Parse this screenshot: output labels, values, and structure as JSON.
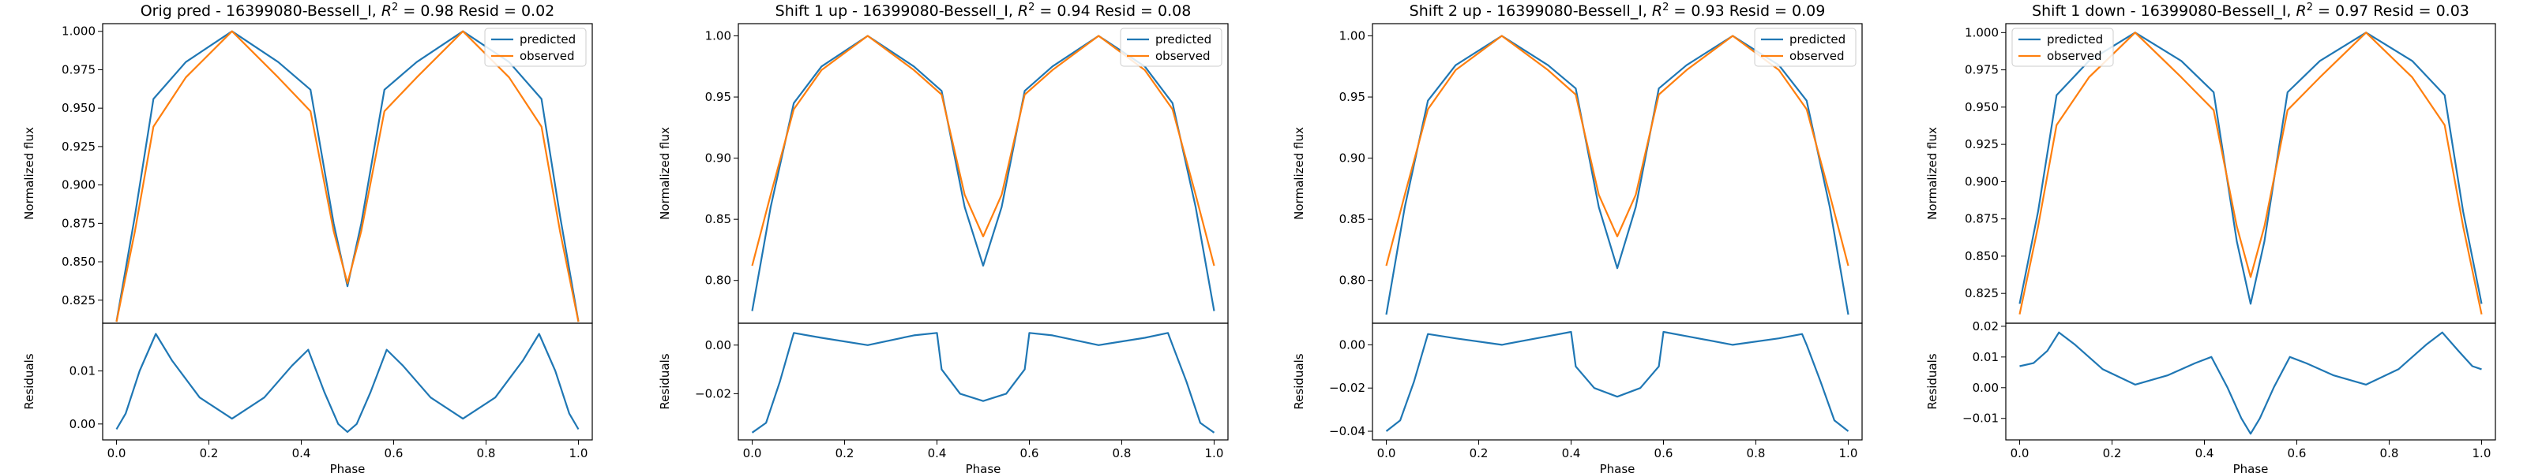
{
  "chart_data": [
    {
      "type": "line",
      "title_prefix": "Orig pred - 16399080-Bessell_I, ",
      "r2_symbol": "R",
      "r2_sup": "2",
      "title_suffix": " = 0.98 Resid = 0.02",
      "top": {
        "ylabel": "Normalized flux",
        "ylim": [
          0.81,
          1.005
        ],
        "yticks": [
          0.825,
          0.85,
          0.875,
          0.9,
          0.925,
          0.95,
          0.975,
          1.0
        ],
        "ytick_labels": [
          "0.825",
          "0.850",
          "0.875",
          "0.900",
          "0.925",
          "0.950",
          "0.975",
          "1.000"
        ],
        "legend": "top-right",
        "series": [
          {
            "name": "predicted",
            "color": "#1f77b4",
            "x": [
              0.0,
              0.04,
              0.08,
              0.15,
              0.25,
              0.35,
              0.42,
              0.47,
              0.5,
              0.53,
              0.58,
              0.65,
              0.75,
              0.85,
              0.92,
              0.96,
              1.0
            ],
            "y": [
              0.811,
              0.88,
              0.956,
              0.98,
              1.0,
              0.98,
              0.962,
              0.875,
              0.834,
              0.875,
              0.962,
              0.98,
              1.0,
              0.98,
              0.956,
              0.88,
              0.811
            ]
          },
          {
            "name": "observed",
            "color": "#ff7f0e",
            "x": [
              0.0,
              0.04,
              0.08,
              0.15,
              0.25,
              0.35,
              0.42,
              0.47,
              0.5,
              0.53,
              0.58,
              0.65,
              0.75,
              0.85,
              0.92,
              0.96,
              1.0
            ],
            "y": [
              0.811,
              0.87,
              0.938,
              0.97,
              1.0,
              0.97,
              0.948,
              0.87,
              0.836,
              0.87,
              0.948,
              0.97,
              1.0,
              0.97,
              0.938,
              0.87,
              0.811
            ]
          }
        ]
      },
      "bottom": {
        "ylabel": "Residuals",
        "xlabel": "Phase",
        "ylim": [
          -0.003,
          0.019
        ],
        "yticks": [
          0.0,
          0.01
        ],
        "ytick_labels": [
          "0.00",
          "0.01"
        ],
        "xticks": [
          0.0,
          0.2,
          0.4,
          0.6,
          0.8,
          1.0
        ],
        "xtick_labels": [
          "0.0",
          "0.2",
          "0.4",
          "0.6",
          "0.8",
          "1.0"
        ],
        "series": [
          {
            "name": "residual",
            "color": "#1f77b4",
            "x": [
              0.0,
              0.02,
              0.05,
              0.085,
              0.12,
              0.18,
              0.25,
              0.32,
              0.38,
              0.415,
              0.45,
              0.48,
              0.5,
              0.52,
              0.55,
              0.585,
              0.62,
              0.68,
              0.75,
              0.82,
              0.88,
              0.915,
              0.95,
              0.98,
              1.0
            ],
            "y": [
              -0.001,
              0.002,
              0.01,
              0.017,
              0.012,
              0.005,
              0.001,
              0.005,
              0.011,
              0.014,
              0.006,
              0.0,
              -0.0015,
              0.0,
              0.006,
              0.014,
              0.011,
              0.005,
              0.001,
              0.005,
              0.012,
              0.017,
              0.01,
              0.002,
              -0.001
            ]
          }
        ]
      }
    },
    {
      "type": "line",
      "title_prefix": "Shift 1 up - 16399080-Bessell_I, ",
      "r2_symbol": "R",
      "r2_sup": "2",
      "title_suffix": " = 0.94 Resid = 0.08",
      "top": {
        "ylabel": "Normalized flux",
        "ylim": [
          0.765,
          1.01
        ],
        "yticks": [
          0.8,
          0.85,
          0.9,
          0.95,
          1.0
        ],
        "ytick_labels": [
          "0.80",
          "0.85",
          "0.90",
          "0.95",
          "1.00"
        ],
        "legend": "top-right",
        "series": [
          {
            "name": "predicted",
            "color": "#1f77b4",
            "x": [
              0.0,
              0.04,
              0.09,
              0.15,
              0.25,
              0.35,
              0.41,
              0.46,
              0.5,
              0.54,
              0.59,
              0.65,
              0.75,
              0.85,
              0.91,
              0.96,
              1.0
            ],
            "y": [
              0.775,
              0.86,
              0.945,
              0.975,
              1.0,
              0.975,
              0.955,
              0.86,
              0.812,
              0.86,
              0.955,
              0.975,
              1.0,
              0.975,
              0.945,
              0.86,
              0.775
            ]
          },
          {
            "name": "observed",
            "color": "#ff7f0e",
            "x": [
              0.0,
              0.04,
              0.09,
              0.15,
              0.25,
              0.35,
              0.41,
              0.46,
              0.5,
              0.54,
              0.59,
              0.65,
              0.75,
              0.85,
              0.91,
              0.96,
              1.0
            ],
            "y": [
              0.812,
              0.87,
              0.94,
              0.972,
              1.0,
              0.972,
              0.952,
              0.87,
              0.836,
              0.87,
              0.952,
              0.972,
              1.0,
              0.972,
              0.94,
              0.87,
              0.812
            ]
          }
        ]
      },
      "bottom": {
        "ylabel": "Residuals",
        "xlabel": "Phase",
        "ylim": [
          -0.039,
          0.009
        ],
        "yticks": [
          -0.02,
          0.0
        ],
        "ytick_labels": [
          "−0.02",
          "0.00"
        ],
        "xticks": [
          0.0,
          0.2,
          0.4,
          0.6,
          0.8,
          1.0
        ],
        "xtick_labels": [
          "0.0",
          "0.2",
          "0.4",
          "0.6",
          "0.8",
          "1.0"
        ],
        "series": [
          {
            "name": "residual",
            "color": "#1f77b4",
            "x": [
              0.0,
              0.03,
              0.06,
              0.09,
              0.15,
              0.25,
              0.35,
              0.4,
              0.41,
              0.45,
              0.5,
              0.55,
              0.59,
              0.6,
              0.65,
              0.75,
              0.85,
              0.9,
              0.91,
              0.94,
              0.97,
              1.0
            ],
            "y": [
              -0.036,
              -0.032,
              -0.015,
              0.005,
              0.003,
              0.0,
              0.004,
              0.005,
              -0.01,
              -0.02,
              -0.023,
              -0.02,
              -0.01,
              0.005,
              0.004,
              0.0,
              0.003,
              0.005,
              0.0,
              -0.015,
              -0.032,
              -0.036
            ]
          }
        ]
      }
    },
    {
      "type": "line",
      "title_prefix": "Shift 2 up - 16399080-Bessell_I, ",
      "r2_symbol": "R",
      "r2_sup": "2",
      "title_suffix": " = 0.93 Resid = 0.09",
      "top": {
        "ylabel": "Normalized flux",
        "ylim": [
          0.765,
          1.01
        ],
        "yticks": [
          0.8,
          0.85,
          0.9,
          0.95,
          1.0
        ],
        "ytick_labels": [
          "0.80",
          "0.85",
          "0.90",
          "0.95",
          "1.00"
        ],
        "legend": "top-right",
        "series": [
          {
            "name": "predicted",
            "color": "#1f77b4",
            "x": [
              0.0,
              0.04,
              0.09,
              0.15,
              0.25,
              0.35,
              0.41,
              0.46,
              0.5,
              0.54,
              0.59,
              0.65,
              0.75,
              0.85,
              0.91,
              0.96,
              1.0
            ],
            "y": [
              0.772,
              0.86,
              0.947,
              0.976,
              1.0,
              0.976,
              0.957,
              0.86,
              0.81,
              0.86,
              0.957,
              0.976,
              1.0,
              0.976,
              0.947,
              0.86,
              0.772
            ]
          },
          {
            "name": "observed",
            "color": "#ff7f0e",
            "x": [
              0.0,
              0.04,
              0.09,
              0.15,
              0.25,
              0.35,
              0.41,
              0.46,
              0.5,
              0.54,
              0.59,
              0.65,
              0.75,
              0.85,
              0.91,
              0.96,
              1.0
            ],
            "y": [
              0.812,
              0.87,
              0.94,
              0.972,
              1.0,
              0.972,
              0.952,
              0.87,
              0.836,
              0.87,
              0.952,
              0.972,
              1.0,
              0.972,
              0.94,
              0.87,
              0.812
            ]
          }
        ]
      },
      "bottom": {
        "ylabel": "Residuals",
        "xlabel": "Phase",
        "ylim": [
          -0.044,
          0.01
        ],
        "yticks": [
          -0.04,
          -0.02,
          0.0
        ],
        "ytick_labels": [
          "−0.04",
          "−0.02",
          "0.00"
        ],
        "xticks": [
          0.0,
          0.2,
          0.4,
          0.6,
          0.8,
          1.0
        ],
        "xtick_labels": [
          "0.0",
          "0.2",
          "0.4",
          "0.6",
          "0.8",
          "1.0"
        ],
        "series": [
          {
            "name": "residual",
            "color": "#1f77b4",
            "x": [
              0.0,
              0.03,
              0.06,
              0.09,
              0.15,
              0.25,
              0.35,
              0.4,
              0.41,
              0.45,
              0.5,
              0.55,
              0.59,
              0.6,
              0.65,
              0.75,
              0.85,
              0.9,
              0.91,
              0.94,
              0.97,
              1.0
            ],
            "y": [
              -0.04,
              -0.035,
              -0.017,
              0.005,
              0.003,
              0.0,
              0.004,
              0.006,
              -0.01,
              -0.02,
              -0.024,
              -0.02,
              -0.01,
              0.006,
              0.004,
              0.0,
              0.003,
              0.005,
              0.0,
              -0.017,
              -0.035,
              -0.04
            ]
          }
        ]
      }
    },
    {
      "type": "line",
      "title_prefix": "Shift 1 down - 16399080-Bessell_I, ",
      "r2_symbol": "R",
      "r2_sup": "2",
      "title_suffix": " = 0.97 Resid = 0.03",
      "top": {
        "ylabel": "Normalized flux",
        "ylim": [
          0.805,
          1.006
        ],
        "yticks": [
          0.825,
          0.85,
          0.875,
          0.9,
          0.925,
          0.95,
          0.975,
          1.0
        ],
        "ytick_labels": [
          "0.825",
          "0.850",
          "0.875",
          "0.900",
          "0.925",
          "0.950",
          "0.975",
          "1.000"
        ],
        "legend": "top-left",
        "series": [
          {
            "name": "predicted",
            "color": "#1f77b4",
            "x": [
              0.0,
              0.04,
              0.08,
              0.15,
              0.25,
              0.35,
              0.42,
              0.47,
              0.5,
              0.53,
              0.58,
              0.65,
              0.75,
              0.85,
              0.92,
              0.96,
              1.0
            ],
            "y": [
              0.818,
              0.88,
              0.958,
              0.981,
              1.0,
              0.981,
              0.96,
              0.86,
              0.818,
              0.86,
              0.96,
              0.981,
              1.0,
              0.981,
              0.958,
              0.88,
              0.818
            ]
          },
          {
            "name": "observed",
            "color": "#ff7f0e",
            "x": [
              0.0,
              0.04,
              0.08,
              0.15,
              0.25,
              0.35,
              0.42,
              0.47,
              0.5,
              0.53,
              0.58,
              0.65,
              0.75,
              0.85,
              0.92,
              0.96,
              1.0
            ],
            "y": [
              0.811,
              0.87,
              0.938,
              0.97,
              1.0,
              0.97,
              0.948,
              0.87,
              0.836,
              0.87,
              0.948,
              0.97,
              1.0,
              0.97,
              0.938,
              0.87,
              0.811
            ]
          }
        ]
      },
      "bottom": {
        "ylabel": "Residuals",
        "xlabel": "Phase",
        "ylim": [
          -0.017,
          0.021
        ],
        "yticks": [
          -0.01,
          0.0,
          0.01,
          0.02
        ],
        "ytick_labels": [
          "−0.01",
          "0.00",
          "0.01",
          "0.02"
        ],
        "xticks": [
          0.0,
          0.2,
          0.4,
          0.6,
          0.8,
          1.0
        ],
        "xtick_labels": [
          "0.0",
          "0.2",
          "0.4",
          "0.6",
          "0.8",
          "1.0"
        ],
        "series": [
          {
            "name": "residual",
            "color": "#1f77b4",
            "x": [
              0.0,
              0.03,
              0.06,
              0.085,
              0.12,
              0.18,
              0.25,
              0.32,
              0.38,
              0.415,
              0.45,
              0.48,
              0.5,
              0.52,
              0.55,
              0.585,
              0.62,
              0.68,
              0.75,
              0.82,
              0.88,
              0.915,
              0.95,
              0.98,
              1.0
            ],
            "y": [
              0.007,
              0.008,
              0.012,
              0.018,
              0.014,
              0.006,
              0.001,
              0.004,
              0.008,
              0.01,
              0.0,
              -0.01,
              -0.015,
              -0.01,
              0.0,
              0.01,
              0.008,
              0.004,
              0.001,
              0.006,
              0.014,
              0.018,
              0.012,
              0.007,
              0.006
            ]
          }
        ]
      }
    }
  ]
}
